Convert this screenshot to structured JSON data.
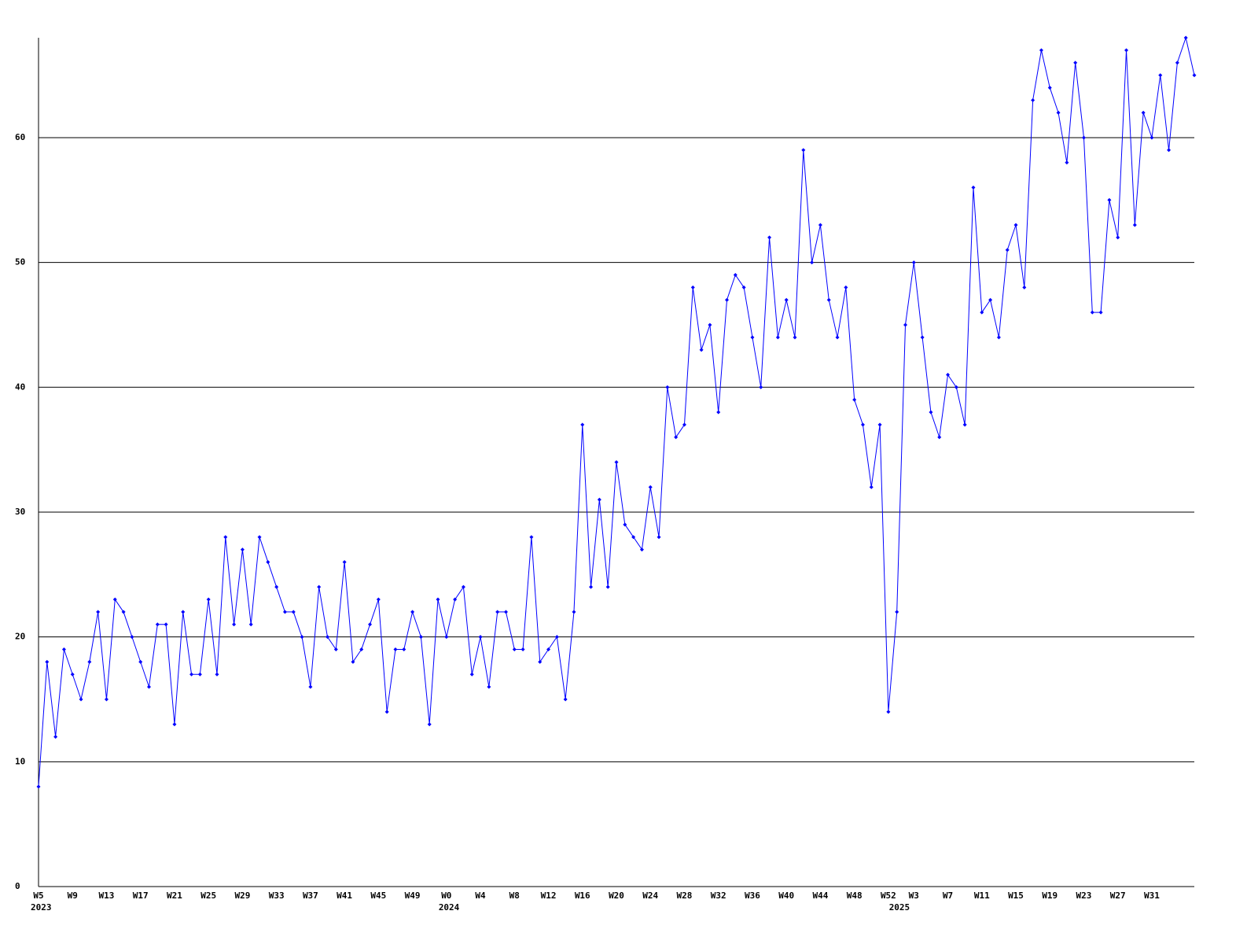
{
  "chart_data": {
    "type": "line",
    "categories": [
      "W5",
      null,
      null,
      null,
      "W9",
      null,
      null,
      null,
      "W13",
      null,
      null,
      null,
      "W17",
      null,
      null,
      null,
      "W21",
      null,
      null,
      null,
      "W25",
      null,
      null,
      null,
      "W29",
      null,
      null,
      null,
      "W33",
      null,
      null,
      null,
      "W37",
      null,
      null,
      null,
      "W41",
      null,
      null,
      null,
      "W45",
      null,
      null,
      null,
      "W49",
      null,
      null,
      null,
      "W0",
      null,
      null,
      null,
      "W4",
      null,
      null,
      null,
      "W8",
      null,
      null,
      null,
      "W12",
      null,
      null,
      null,
      "W16",
      null,
      null,
      null,
      "W20",
      null,
      null,
      null,
      "W24",
      null,
      null,
      null,
      "W28",
      null,
      null,
      null,
      "W32",
      null,
      null,
      null,
      "W36",
      null,
      null,
      null,
      "W40",
      null,
      null,
      null,
      "W44",
      null,
      null,
      null,
      "W48",
      null,
      null,
      null,
      "W52",
      null,
      null,
      "W3",
      null,
      null,
      null,
      "W7",
      null,
      null,
      null,
      "W11",
      null,
      null,
      null,
      "W15",
      null,
      null,
      null,
      "W19",
      null,
      null,
      null,
      "W23",
      null,
      null,
      null,
      "W27",
      null,
      null,
      null,
      "W31",
      null,
      null,
      null,
      null,
      null
    ],
    "category_years": [
      "2023",
      null,
      null,
      null,
      null,
      null,
      null,
      null,
      null,
      null,
      null,
      null,
      null,
      null,
      null,
      null,
      null,
      null,
      null,
      null,
      null,
      null,
      null,
      null,
      null,
      null,
      null,
      null,
      null,
      null,
      null,
      null,
      null,
      null,
      null,
      null,
      null,
      null,
      null,
      null,
      null,
      null,
      null,
      null,
      null,
      null,
      null,
      null,
      "2024",
      null,
      null,
      null,
      null,
      null,
      null,
      null,
      null,
      null,
      null,
      null,
      null,
      null,
      null,
      null,
      null,
      null,
      null,
      null,
      null,
      null,
      null,
      null,
      null,
      null,
      null,
      null,
      null,
      null,
      null,
      null,
      null,
      null,
      null,
      null,
      null,
      null,
      null,
      null,
      null,
      null,
      null,
      null,
      null,
      null,
      null,
      null,
      null,
      null,
      null,
      null,
      null,
      "2025",
      null,
      null,
      null,
      null,
      null,
      null,
      null,
      null,
      null,
      null,
      null,
      null,
      null,
      null,
      null,
      null,
      null,
      null,
      null,
      null,
      null,
      null,
      null,
      null,
      null,
      null,
      null,
      null,
      null,
      null,
      null,
      null,
      null,
      null,
      null
    ],
    "series": [
      {
        "color": "#0000ff",
        "values": [
          8,
          18,
          12,
          19,
          17,
          15,
          18,
          22,
          15,
          23,
          22,
          20,
          18,
          16,
          21,
          21,
          13,
          22,
          17,
          17,
          23,
          17,
          28,
          21,
          27,
          21,
          28,
          26,
          24,
          22,
          22,
          20,
          16,
          24,
          20,
          19,
          26,
          18,
          19,
          21,
          23,
          14,
          19,
          19,
          22,
          20,
          13,
          23,
          20,
          23,
          24,
          17,
          20,
          16,
          22,
          22,
          19,
          19,
          28,
          18,
          19,
          20,
          15,
          22,
          37,
          24,
          31,
          24,
          34,
          29,
          28,
          27,
          32,
          28,
          40,
          36,
          37,
          48,
          43,
          45,
          38,
          47,
          49,
          48,
          44,
          40,
          52,
          44,
          47,
          44,
          59,
          50,
          53,
          47,
          44,
          48,
          39,
          37,
          32,
          37,
          14,
          22,
          45,
          50,
          44,
          38,
          36,
          41,
          40,
          37,
          56,
          46,
          47,
          44,
          51,
          53,
          48,
          63,
          67,
          64,
          62,
          58,
          66,
          60,
          46,
          46,
          55,
          52,
          67,
          53,
          62,
          60,
          65,
          59,
          66,
          68,
          65
        ]
      }
    ],
    "ylim": [
      0,
      68
    ],
    "yticks": [
      0,
      10,
      20,
      30,
      40,
      50,
      60
    ],
    "grid": true
  }
}
